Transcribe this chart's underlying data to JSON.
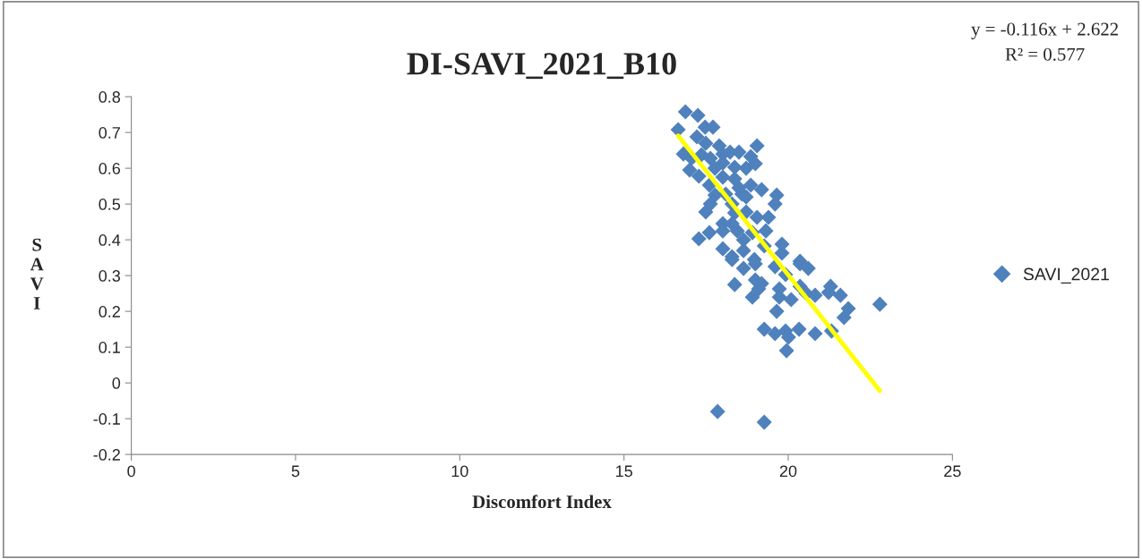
{
  "chart_data": {
    "type": "scatter",
    "title": "DI-SAVI_2021_B10",
    "xlabel": "Discomfort Index",
    "ylabel": "SAVI",
    "annotations": [
      "y = -0.116x + 2.622",
      "R² = 0.577"
    ],
    "xlim": [
      0,
      25
    ],
    "xticks": [
      0,
      5,
      10,
      15,
      20,
      25
    ],
    "ylim": [
      -0.2,
      0.8
    ],
    "yticks": [
      -0.2,
      -0.1,
      0,
      0.1,
      0.2,
      0.3,
      0.4,
      0.5,
      0.6,
      0.7,
      0.8
    ],
    "grid": false,
    "legend": "right",
    "series": [
      {
        "name": "SAVI_2021",
        "marker": "diamond",
        "color": "#4f81bd",
        "x": [
          16.87,
          17.25,
          16.65,
          17.47,
          17.71,
          17.22,
          17.49,
          17.9,
          19.05,
          16.81,
          17.06,
          17.36,
          17.63,
          18.01,
          18.23,
          18.5,
          18.86,
          19.0,
          18.72,
          18.37,
          18.01,
          17.77,
          17.0,
          17.28,
          17.6,
          18.01,
          18.37,
          18.5,
          18.1,
          17.77,
          18.59,
          18.86,
          18.72,
          19.19,
          19.65,
          19.6,
          17.63,
          17.49,
          18.29,
          18.37,
          18.72,
          19.05,
          19.4,
          18.01,
          18.29,
          17.6,
          17.28,
          18.01,
          18.45,
          18.91,
          19.32,
          18.64,
          18.01,
          18.29,
          18.64,
          18.97,
          19.27,
          19.81,
          19.81,
          20.36,
          18.29,
          18.64,
          19.0,
          19.6,
          20.36,
          20.61,
          19.92,
          18.37,
          19.0,
          19.19,
          18.91,
          19.1,
          19.73,
          19.73,
          20.09,
          20.36,
          20.55,
          20.82,
          21.29,
          21.23,
          21.59,
          22.79,
          21.83,
          21.7,
          19.65,
          19.27,
          19.6,
          19.92,
          20.01,
          20.33,
          20.82,
          21.32,
          19.95,
          17.85,
          19.27
        ],
        "values": [
          0.758,
          0.748,
          0.708,
          0.715,
          0.715,
          0.688,
          0.67,
          0.663,
          0.663,
          0.64,
          0.628,
          0.638,
          0.628,
          0.64,
          0.645,
          0.645,
          0.633,
          0.613,
          0.6,
          0.603,
          0.615,
          0.6,
          0.595,
          0.578,
          0.553,
          0.575,
          0.57,
          0.545,
          0.528,
          0.525,
          0.528,
          0.553,
          0.52,
          0.54,
          0.525,
          0.5,
          0.5,
          0.478,
          0.5,
          0.475,
          0.478,
          0.463,
          0.463,
          0.445,
          0.445,
          0.42,
          0.403,
          0.425,
          0.425,
          0.42,
          0.425,
          0.4,
          0.375,
          0.353,
          0.37,
          0.345,
          0.383,
          0.388,
          0.363,
          0.34,
          0.345,
          0.32,
          0.333,
          0.325,
          0.333,
          0.32,
          0.303,
          0.275,
          0.288,
          0.278,
          0.24,
          0.263,
          0.263,
          0.24,
          0.233,
          0.27,
          0.25,
          0.245,
          0.27,
          0.253,
          0.245,
          0.22,
          0.208,
          0.183,
          0.2,
          0.15,
          0.138,
          0.145,
          0.128,
          0.15,
          0.138,
          0.145,
          0.09,
          -0.08,
          -0.11
        ]
      },
      {
        "type": "line",
        "marker": "none",
        "color": "#ffff00",
        "x": [
          16.65,
          22.79
        ],
        "values": [
          0.691,
          -0.022
        ]
      }
    ]
  }
}
